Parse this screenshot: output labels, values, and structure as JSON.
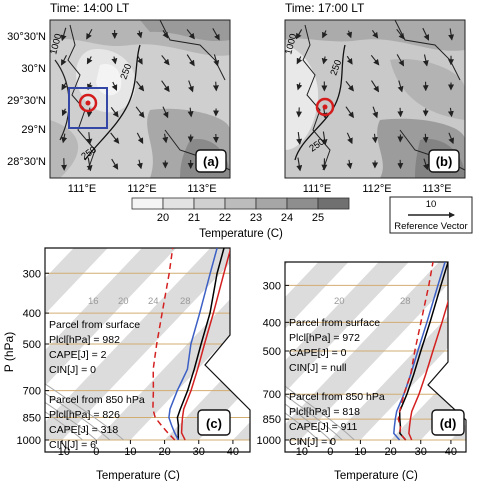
{
  "maps": [
    {
      "title": "Time: 14:00 LT",
      "panel_label": "(a)",
      "contour_labels": [
        "1000",
        "250",
        "250"
      ],
      "y_ticks": [
        "30°30'N",
        "30°N",
        "29°30'N",
        "29°N",
        "28°30'N"
      ],
      "x_ticks": [
        "111°E",
        "112°E",
        "113°E"
      ]
    },
    {
      "title": "Time: 17:00 LT",
      "panel_label": "(b)",
      "contour_labels": [
        "1000",
        "250",
        "250"
      ],
      "x_ticks": [
        "111°E",
        "112°E",
        "113°E"
      ]
    }
  ],
  "colorbar": {
    "ticks": [
      "20",
      "21",
      "22",
      "23",
      "24",
      "25"
    ],
    "label": "Temperature (C)",
    "colors": [
      "#f5f5f5",
      "#e3e3e3",
      "#d0d0d0",
      "#bcbcbc",
      "#a6a6a6",
      "#8e8e8e",
      "#707070"
    ]
  },
  "reference_vector": {
    "value": "10",
    "label": "Reference Vector"
  },
  "skewt": {
    "ylabel": "P (hPa)",
    "xlabel": "Temperature (C)",
    "p_ticks": [
      "300",
      "400",
      "500",
      "700",
      "850",
      "1000"
    ],
    "t_ticks": [
      "-10",
      "0",
      "10",
      "20",
      "30",
      "40"
    ],
    "skew_labels": [
      "16",
      "20",
      "24",
      "28"
    ]
  },
  "chart_data": [
    {
      "type": "line",
      "panel": "(c)",
      "xlabel": "Temperature (C)",
      "ylabel": "P (hPa)",
      "xlim": [
        -15,
        45
      ],
      "ylim": [
        1000,
        250
      ],
      "log_y": true,
      "series": [
        {
          "color": "#000000",
          "p": [
            1000,
            950,
            900,
            850,
            800,
            700,
            600,
            500,
            400,
            300,
            250
          ],
          "t": [
            24,
            22,
            20,
            17.5,
            16,
            13,
            9,
            4,
            -2,
            -11,
            -16
          ]
        },
        {
          "color": "#d42020",
          "p": [
            1000,
            950,
            900,
            850,
            800,
            700,
            600,
            500,
            400,
            300,
            250
          ],
          "t": [
            26,
            23,
            21,
            19,
            17,
            14,
            10,
            5,
            -1,
            -9,
            -14
          ]
        },
        {
          "color": "#3b5fc4",
          "p": [
            1000,
            950,
            900,
            850,
            800,
            700,
            600,
            500,
            400,
            300,
            250
          ],
          "t": [
            24,
            21,
            18,
            15,
            13,
            10,
            7,
            1,
            -5,
            -13,
            -18
          ]
        },
        {
          "color": "#d42020",
          "dashed": true,
          "p": [
            1000,
            950,
            900,
            850,
            800,
            700,
            600,
            500,
            400,
            300,
            250
          ],
          "t": [
            23,
            19,
            15,
            11,
            8,
            3,
            -3,
            -9,
            -16,
            -25,
            -31
          ]
        }
      ],
      "text_blocks": [
        [
          "Parcel from surface",
          "Plcl[hPa] = 982",
          "CAPE[J] = 2",
          "CIN[J] = 0"
        ],
        [
          "Parcel from 850 hPa",
          "Plcl[hPa] = 826",
          "CAPE[J] = 318",
          "CIN[J] = 6"
        ]
      ]
    },
    {
      "type": "line",
      "panel": "(d)",
      "xlabel": "Temperature (C)",
      "xlim": [
        -15,
        45
      ],
      "ylim": [
        1000,
        250
      ],
      "log_y": true,
      "series": [
        {
          "color": "#000000",
          "p": [
            1000,
            950,
            900,
            850,
            800,
            700,
            600,
            500,
            400,
            300,
            250
          ],
          "t": [
            25,
            21,
            19,
            16.5,
            14,
            11,
            7,
            2,
            -4,
            -12,
            -17
          ]
        },
        {
          "color": "#d42020",
          "p": [
            1000,
            950,
            900,
            850,
            800,
            700,
            600,
            500,
            400,
            300,
            250
          ],
          "t": [
            27,
            24,
            22,
            20,
            18,
            15,
            11,
            6,
            0,
            -8,
            -13
          ]
        },
        {
          "color": "#3b5fc4",
          "p": [
            1000,
            950,
            900,
            850,
            800,
            700,
            600,
            500,
            400,
            300,
            250
          ],
          "t": [
            23,
            19,
            17,
            15,
            13,
            10,
            6,
            1,
            -5,
            -13,
            -18
          ]
        },
        {
          "color": "#d42020",
          "dashed": true,
          "p": [
            1000,
            950,
            900,
            850,
            800,
            700,
            600,
            500,
            400,
            300,
            250
          ],
          "t": [
            25,
            21,
            19,
            16,
            14,
            10,
            6,
            0,
            -7,
            -16,
            -22
          ]
        }
      ],
      "text_blocks": [
        [
          "Parcel from surface",
          "Plcl[hPa] = 972",
          "CAPE[J] = 0",
          "CIN[J] = null"
        ],
        [
          "Parcel from 850 hPa",
          "Plcl[hPa] = 818",
          "CAPE[J] = 911",
          "CIN[J] = 0"
        ]
      ]
    }
  ]
}
